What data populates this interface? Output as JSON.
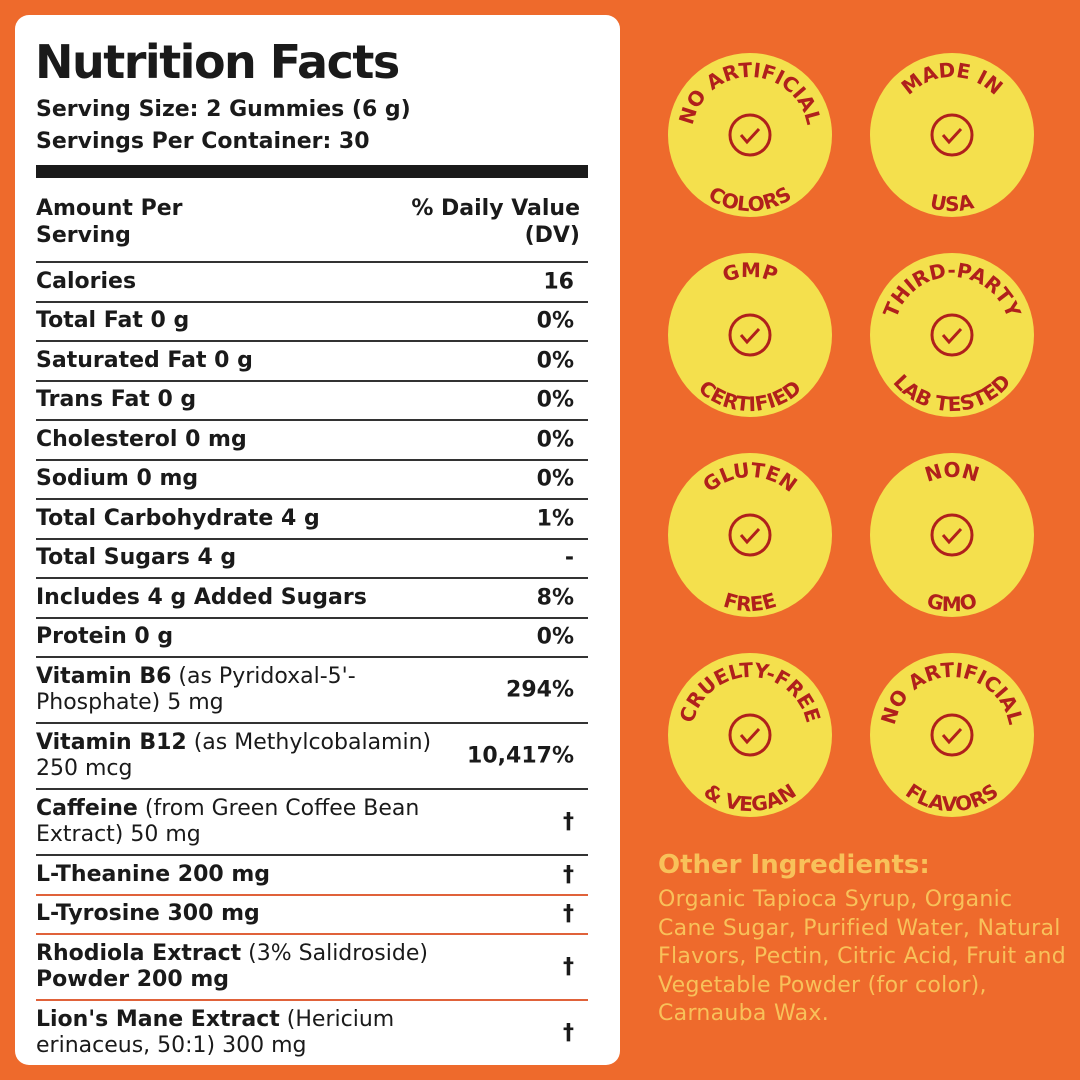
{
  "title": "Nutrition Facts",
  "serving_size": "Serving Size: 2 Gummies (6 g)",
  "servings_per_container": "Servings Per Container: 30",
  "header": {
    "amount": "Amount Per Serving",
    "dv": "% Daily Value (DV)"
  },
  "rows": [
    {
      "parts": [
        {
          "text": "Calories",
          "bold": true
        }
      ],
      "dv": "16"
    },
    {
      "parts": [
        {
          "text": "Total Fat 0 g",
          "bold": true
        }
      ],
      "dv": "0%"
    },
    {
      "parts": [
        {
          "text": "Saturated Fat 0 g",
          "bold": true
        }
      ],
      "dv": "0%"
    },
    {
      "parts": [
        {
          "text": "Trans Fat 0 g",
          "bold": true
        }
      ],
      "dv": "0%"
    },
    {
      "parts": [
        {
          "text": "Cholesterol 0 mg",
          "bold": true
        }
      ],
      "dv": "0%"
    },
    {
      "parts": [
        {
          "text": "Sodium 0 mg",
          "bold": true
        }
      ],
      "dv": "0%"
    },
    {
      "parts": [
        {
          "text": "Total Carbohydrate 4 g",
          "bold": true
        }
      ],
      "dv": "1%"
    },
    {
      "parts": [
        {
          "text": "Total Sugars 4 g",
          "bold": true
        }
      ],
      "dv": "-"
    },
    {
      "parts": [
        {
          "text": "Includes 4 g Added Sugars",
          "bold": true
        }
      ],
      "dv": "8%"
    },
    {
      "parts": [
        {
          "text": "Protein 0 g",
          "bold": true
        }
      ],
      "dv": "0%"
    },
    {
      "parts": [
        {
          "text": "Vitamin B6",
          "bold": true
        },
        {
          "text": "(as Pyridoxal-5'-Phosphate) 5 mg",
          "bold": false
        }
      ],
      "dv": "294%"
    },
    {
      "parts": [
        {
          "text": "Vitamin B12",
          "bold": true
        },
        {
          "text": "(as Methylcobalamin) 250 mcg",
          "bold": false
        }
      ],
      "dv": "10,417%"
    },
    {
      "parts": [
        {
          "text": "Caffeine",
          "bold": true
        },
        {
          "text": "(from Green Coffee Bean Extract) 50 mg",
          "bold": false
        }
      ],
      "dv": "†"
    },
    {
      "parts": [
        {
          "text": "L-Theanine 200 mg",
          "bold": true
        }
      ],
      "dv": "†"
    },
    {
      "parts": [
        {
          "text": "L-Tyrosine 300 mg",
          "bold": true
        }
      ],
      "dv": "†"
    },
    {
      "parts": [
        {
          "text": "Rhodiola Extract",
          "bold": true
        },
        {
          "text": "(3% Salidroside)",
          "bold": false
        },
        {
          "text": "Powder 200 mg",
          "bold": true
        }
      ],
      "dv": "†"
    },
    {
      "parts": [
        {
          "text": "Lion's Mane Extract",
          "bold": true
        },
        {
          "text": "(Hericium erinaceus, 50:1) 300 mg",
          "bold": false
        }
      ],
      "dv": "†"
    }
  ],
  "badges": [
    {
      "top": "NO ARTIFICIAL",
      "bottom": "COLORS"
    },
    {
      "top": "MADE IN",
      "bottom": "USA"
    },
    {
      "top": "GMP",
      "bottom": "CERTIFIED"
    },
    {
      "top": "THIRD-PARTY",
      "bottom": "LAB TESTED"
    },
    {
      "top": "GLUTEN",
      "bottom": "FREE"
    },
    {
      "top": "NON",
      "bottom": "GMO"
    },
    {
      "top": "CRUELTY-FREE",
      "bottom": "& VEGAN"
    },
    {
      "top": "NO ARTIFICIAL",
      "bottom": "FLAVORS"
    }
  ],
  "other_ingredients": {
    "title": "Other Ingredients:",
    "text": "Organic Tapioca Syrup, Organic Cane Sugar, Purified Water, Natural Flavors, Pectin, Citric Acid, Fruit and Vegetable Powder (for color), Carnauba Wax."
  }
}
